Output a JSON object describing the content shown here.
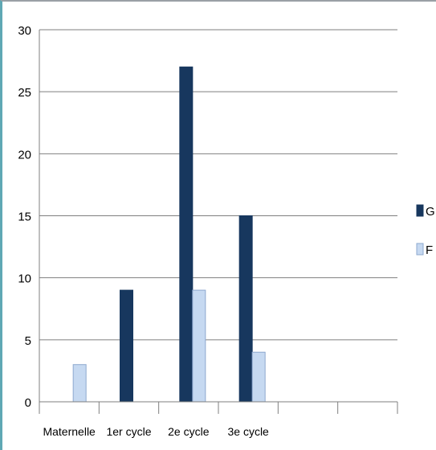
{
  "chart_data": {
    "type": "bar",
    "title": "",
    "xlabel": "",
    "ylabel": "",
    "categories": [
      "Maternelle",
      "1er cycle",
      "2e cycle",
      "3e cycle",
      "",
      ""
    ],
    "series": [
      {
        "name": "G",
        "values": [
          0,
          9,
          27,
          15,
          null,
          null
        ],
        "color": "#17375e"
      },
      {
        "name": "F",
        "values": [
          3,
          0,
          9,
          4,
          null,
          null
        ],
        "color": "#c6d9f1"
      }
    ],
    "ylim": [
      0,
      30
    ],
    "yticks": [
      0,
      5,
      10,
      15,
      20,
      25,
      30
    ],
    "grid": true,
    "legend": "right"
  }
}
